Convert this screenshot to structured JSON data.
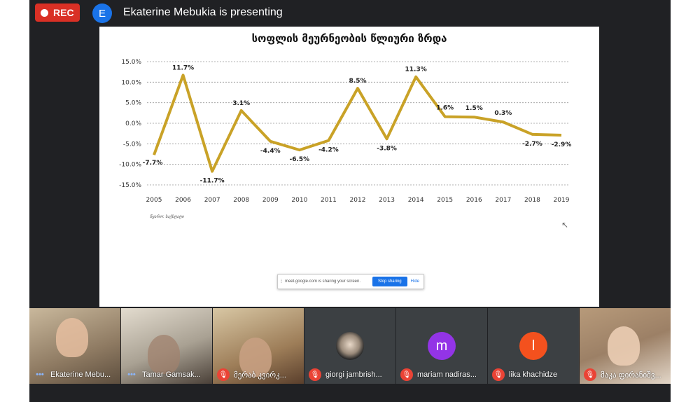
{
  "topbar": {
    "rec_label": "REC",
    "presenter_initial": "E",
    "presenting_text": "Ekaterine Mebukia is presenting"
  },
  "slide": {
    "source_note": "წყარო: საქსტატი"
  },
  "share_bar": {
    "text": "meet.google.com is sharing your screen.",
    "stop_label": "Stop sharing",
    "hide_label": "Hide"
  },
  "participants": [
    {
      "name": "Ekaterine Mebu...",
      "muted": false,
      "speaking": true
    },
    {
      "name": "Tamar Gamsak...",
      "muted": false,
      "speaking": true
    },
    {
      "name": "მერაბ კვირკ...",
      "muted": true
    },
    {
      "name": "giorgi jambrish...",
      "muted": true,
      "avatar": "photo"
    },
    {
      "name": "mariam nadiras...",
      "muted": true,
      "avatar": "m",
      "initial": "m"
    },
    {
      "name": "lika khachidze",
      "muted": true,
      "avatar": "l",
      "initial": "l"
    },
    {
      "name": "მაკა ფირანიშვ...",
      "muted": true
    }
  ],
  "colors": {
    "line": "#c9a227",
    "rec": "#d93025",
    "accent": "#1a73e8"
  },
  "chart_data": {
    "type": "line",
    "title": "სოფლის მეურნეობის წლიური ზრდა",
    "categories": [
      "2005",
      "2006",
      "2007",
      "2008",
      "2009",
      "2010",
      "2011",
      "2012",
      "2013",
      "2014",
      "2015",
      "2016",
      "2017",
      "2018",
      "2019"
    ],
    "series": [
      {
        "values": [
          -7.7,
          11.7,
          -11.7,
          3.1,
          -4.4,
          -6.5,
          -4.2,
          8.5,
          -3.8,
          11.3,
          1.6,
          1.5,
          0.3,
          -2.7,
          -2.9
        ]
      }
    ],
    "data_labels": [
      "-7.7%",
      "11.7%",
      "-11.7%",
      "3.1%",
      "-4.4%",
      "-6.5%",
      "-4.2%",
      "8.5%",
      "-3.8%",
      "11.3%",
      "1.6%",
      "1.5%",
      "0.3%",
      "-2.7%",
      "-2.9%"
    ],
    "y_ticks": [
      "15.0%",
      "10.0%",
      "5.0%",
      "0.0%",
      "-5.0%",
      "-10.0%",
      "-15.0%"
    ],
    "y_tick_values": [
      15,
      10,
      5,
      0,
      -5,
      -10,
      -15
    ],
    "ylim": [
      -15,
      15
    ],
    "grid": true,
    "legend": "none"
  }
}
